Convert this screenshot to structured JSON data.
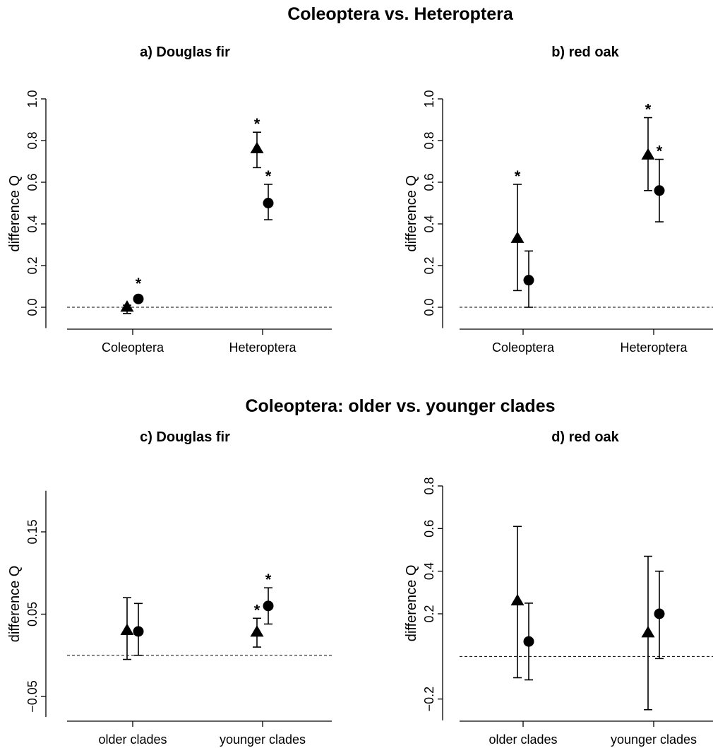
{
  "figure": {
    "section_titles": [
      "Coleoptera vs. Heteroptera",
      "Coleoptera: older vs. younger clades"
    ]
  },
  "chart_data": [
    {
      "type": "scatter",
      "title": "a) Douglas fir",
      "ylabel": "difference Q",
      "categories": [
        "Coleoptera",
        "Heteroptera"
      ],
      "ylim": [
        -0.1,
        1.0
      ],
      "yticks": [
        0.0,
        0.2,
        0.4,
        0.6,
        0.8,
        1.0
      ],
      "ytick_labels": [
        "0.0",
        "0.2",
        "0.4",
        "0.6",
        "0.8",
        "1.0"
      ],
      "reference_line": 0,
      "series": [
        {
          "marker": "triangle",
          "values": [
            0.0,
            0.76
          ],
          "lower": [
            -0.03,
            0.67
          ],
          "upper": [
            0.01,
            0.84
          ],
          "significant": [
            false,
            true
          ]
        },
        {
          "marker": "circle",
          "values": [
            0.04,
            0.5
          ],
          "lower": [
            0.04,
            0.42
          ],
          "upper": [
            0.04,
            0.59
          ],
          "significant": [
            true,
            true
          ]
        }
      ]
    },
    {
      "type": "scatter",
      "title": "b) red oak",
      "ylabel": "difference Q",
      "categories": [
        "Coleoptera",
        "Heteroptera"
      ],
      "ylim": [
        -0.1,
        1.0
      ],
      "yticks": [
        0.0,
        0.2,
        0.4,
        0.6,
        0.8,
        1.0
      ],
      "ytick_labels": [
        "0.0",
        "0.2",
        "0.4",
        "0.6",
        "0.8",
        "1.0"
      ],
      "reference_line": 0,
      "series": [
        {
          "marker": "triangle",
          "values": [
            0.33,
            0.73
          ],
          "lower": [
            0.08,
            0.56
          ],
          "upper": [
            0.59,
            0.91
          ],
          "significant": [
            true,
            true
          ]
        },
        {
          "marker": "circle",
          "values": [
            0.13,
            0.56
          ],
          "lower": [
            0.0,
            0.41
          ],
          "upper": [
            0.27,
            0.71
          ],
          "significant": [
            false,
            true
          ]
        }
      ]
    },
    {
      "type": "scatter",
      "title": "c) Douglas fir",
      "ylabel": "difference Q",
      "categories": [
        "older clades",
        "younger clades"
      ],
      "ylim": [
        -0.075,
        0.2
      ],
      "yticks": [
        -0.05,
        0.05,
        0.15
      ],
      "ytick_labels": [
        "−0.05",
        "0.05",
        "0.15"
      ],
      "reference_line": 0,
      "series": [
        {
          "marker": "triangle",
          "values": [
            0.03,
            0.028
          ],
          "lower": [
            -0.005,
            0.01
          ],
          "upper": [
            0.07,
            0.045
          ],
          "significant": [
            false,
            true
          ]
        },
        {
          "marker": "circle",
          "values": [
            0.029,
            0.06
          ],
          "lower": [
            0.0,
            0.038
          ],
          "upper": [
            0.063,
            0.082
          ],
          "significant": [
            false,
            true
          ]
        }
      ]
    },
    {
      "type": "scatter",
      "title": "d) red oak",
      "ylabel": "difference Q",
      "categories": [
        "older clades",
        "younger clades"
      ],
      "ylim": [
        -0.3,
        0.8
      ],
      "yticks": [
        -0.2,
        0.2,
        0.4,
        0.6,
        0.8
      ],
      "ytick_labels": [
        "−0.2",
        "0.2",
        "0.4",
        "0.6",
        "0.8"
      ],
      "reference_line": 0,
      "series": [
        {
          "marker": "triangle",
          "values": [
            0.26,
            0.11
          ],
          "lower": [
            -0.1,
            -0.25
          ],
          "upper": [
            0.61,
            0.47
          ],
          "significant": [
            false,
            false
          ]
        },
        {
          "marker": "circle",
          "values": [
            0.07,
            0.2
          ],
          "lower": [
            -0.11,
            -0.01
          ],
          "upper": [
            0.25,
            0.4
          ],
          "significant": [
            false,
            false
          ]
        }
      ]
    }
  ]
}
